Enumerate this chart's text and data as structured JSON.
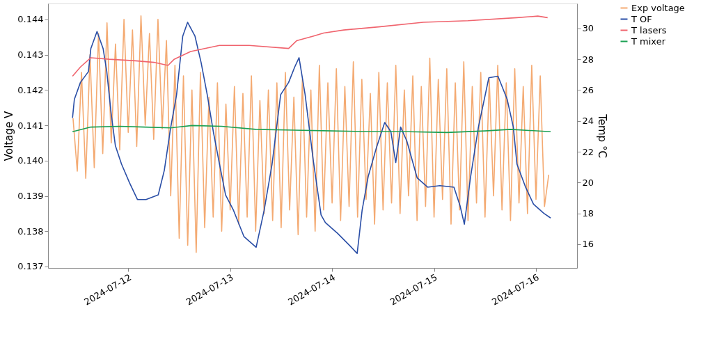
{
  "chart_data": {
    "type": "line",
    "xlabel": null,
    "ylabel": "Voltage V",
    "y2label": "Temp °C",
    "xlim": [
      "2024-07-11T05:07",
      "2024-07-16T09:40"
    ],
    "xticks": [
      "2024-07-12",
      "2024-07-13",
      "2024-07-14",
      "2024-07-15",
      "2024-07-16"
    ],
    "ylim": [
      0.13696,
      0.14445
    ],
    "yticks": [
      0.137,
      0.138,
      0.139,
      {
        "value": 0.14,
        "label": "0.140"
      },
      0.141,
      0.142,
      0.143,
      0.144
    ],
    "y2lim": [
      14.46,
      31.62
    ],
    "y2ticks": [
      16,
      18,
      20,
      22,
      24,
      26,
      28,
      30
    ],
    "grid": false,
    "legend": "top right",
    "marker": "none",
    "line_style": "solid",
    "series": [
      {
        "name": "Exp voltage",
        "color": "#f4aa72",
        "x": [
          "2024-07-11T11:00",
          "2024-07-11T12:00",
          "2024-07-11T13:00",
          "2024-07-11T14:00",
          "2024-07-11T15:00",
          "2024-07-11T16:00",
          "2024-07-11T17:00",
          "2024-07-11T18:00",
          "2024-07-11T19:00",
          "2024-07-11T20:00",
          "2024-07-11T21:00",
          "2024-07-11T22:00",
          "2024-07-11T23:00",
          "2024-07-12T00:00",
          "2024-07-12T01:00",
          "2024-07-12T02:00",
          "2024-07-12T03:00",
          "2024-07-12T04:00",
          "2024-07-12T05:00",
          "2024-07-12T06:00",
          "2024-07-12T07:00",
          "2024-07-12T08:00",
          "2024-07-12T09:00",
          "2024-07-12T10:00",
          "2024-07-12T11:00",
          "2024-07-12T12:00",
          "2024-07-12T13:00",
          "2024-07-12T14:00",
          "2024-07-12T15:00",
          "2024-07-12T16:00",
          "2024-07-12T17:00",
          "2024-07-12T18:00",
          "2024-07-12T19:00",
          "2024-07-12T20:00",
          "2024-07-12T21:00",
          "2024-07-12T22:00",
          "2024-07-12T23:00",
          "2024-07-13T00:00",
          "2024-07-13T01:00",
          "2024-07-13T02:00",
          "2024-07-13T03:00",
          "2024-07-13T04:00",
          "2024-07-13T05:00",
          "2024-07-13T06:00",
          "2024-07-13T07:00",
          "2024-07-13T08:00",
          "2024-07-13T09:00",
          "2024-07-13T10:00",
          "2024-07-13T11:00",
          "2024-07-13T12:00",
          "2024-07-13T13:00",
          "2024-07-13T14:00",
          "2024-07-13T15:00",
          "2024-07-13T16:00",
          "2024-07-13T17:00",
          "2024-07-13T18:00",
          "2024-07-13T19:00",
          "2024-07-13T20:00",
          "2024-07-13T21:00",
          "2024-07-13T22:00",
          "2024-07-13T23:00",
          "2024-07-14T00:00",
          "2024-07-14T01:00",
          "2024-07-14T02:00",
          "2024-07-14T03:00",
          "2024-07-14T04:00",
          "2024-07-14T05:00",
          "2024-07-14T06:00",
          "2024-07-14T07:00",
          "2024-07-14T08:00",
          "2024-07-14T09:00",
          "2024-07-14T10:00",
          "2024-07-14T11:00",
          "2024-07-14T12:00",
          "2024-07-14T13:00",
          "2024-07-14T14:00",
          "2024-07-14T15:00",
          "2024-07-14T16:00",
          "2024-07-14T17:00",
          "2024-07-14T18:00",
          "2024-07-14T19:00",
          "2024-07-14T20:00",
          "2024-07-14T21:00",
          "2024-07-14T22:00",
          "2024-07-14T23:00",
          "2024-07-15T00:00",
          "2024-07-15T01:00",
          "2024-07-15T02:00",
          "2024-07-15T03:00",
          "2024-07-15T04:00",
          "2024-07-15T05:00",
          "2024-07-15T06:00",
          "2024-07-15T07:00",
          "2024-07-15T08:00",
          "2024-07-15T09:00",
          "2024-07-15T10:00",
          "2024-07-15T11:00",
          "2024-07-15T12:00",
          "2024-07-15T13:00",
          "2024-07-15T14:00",
          "2024-07-15T15:00",
          "2024-07-15T16:00",
          "2024-07-15T17:00",
          "2024-07-15T18:00",
          "2024-07-15T19:00",
          "2024-07-15T20:00",
          "2024-07-15T21:00",
          "2024-07-15T22:00",
          "2024-07-15T23:00",
          "2024-07-16T00:00",
          "2024-07-16T01:00",
          "2024-07-16T02:00",
          "2024-07-16T03:00"
        ],
        "values": [
          0.1412,
          0.1397,
          0.1425,
          0.1395,
          0.143,
          0.1398,
          0.1436,
          0.1402,
          0.1439,
          0.1405,
          0.1433,
          0.1403,
          0.144,
          0.1408,
          0.1437,
          0.1404,
          0.1441,
          0.141,
          0.1436,
          0.1406,
          0.144,
          0.1409,
          0.1434,
          0.139,
          0.1427,
          0.1378,
          0.1424,
          0.1376,
          0.142,
          0.1374,
          0.1425,
          0.1381,
          0.1418,
          0.1384,
          0.1422,
          0.138,
          0.1416,
          0.1386,
          0.1421,
          0.1382,
          0.1419,
          0.1384,
          0.1424,
          0.138,
          0.1417,
          0.1385,
          0.142,
          0.1383,
          0.1422,
          0.1381,
          0.1425,
          0.1386,
          0.1418,
          0.1379,
          0.1423,
          0.1384,
          0.142,
          0.138,
          0.1427,
          0.1386,
          0.1422,
          0.1388,
          0.1426,
          0.1383,
          0.1421,
          0.1387,
          0.1428,
          0.1384,
          0.1423,
          0.1389,
          0.1419,
          0.1382,
          0.1425,
          0.1386,
          0.1422,
          0.1388,
          0.1427,
          0.1385,
          0.142,
          0.139,
          0.1424,
          0.1383,
          0.1421,
          0.1387,
          0.1429,
          0.1384,
          0.1423,
          0.1389,
          0.1426,
          0.1382,
          0.1422,
          0.1386,
          0.1428,
          0.1383,
          0.1421,
          0.1388,
          0.1425,
          0.1384,
          0.1423,
          0.139,
          0.1427,
          0.1386,
          0.1422,
          0.1383,
          0.1426,
          0.1388,
          0.1421,
          0.1385,
          0.1427,
          0.1389,
          0.1424,
          0.1387,
          0.1396
        ]
      },
      {
        "name": "T OF",
        "color": "#2a4ea6",
        "axis": "y2",
        "x": [
          "2024-07-11T10:53",
          "2024-07-11T11:19",
          "2024-07-11T12:45",
          "2024-07-11T14:38",
          "2024-07-11T15:12",
          "2024-07-11T16:39",
          "2024-07-11T18:05",
          "2024-07-11T18:57",
          "2024-07-11T19:58",
          "2024-07-11T20:58",
          "2024-07-11T22:25",
          "2024-07-12T00:17",
          "2024-07-12T02:10",
          "2024-07-12T04:11",
          "2024-07-12T07:04",
          "2024-07-12T08:30",
          "2024-07-12T09:57",
          "2024-07-12T11:23",
          "2024-07-12T12:50",
          "2024-07-12T13:59",
          "2024-07-12T15:43",
          "2024-07-12T17:09",
          "2024-07-12T18:36",
          "2024-07-12T20:02",
          "2024-07-12T21:29",
          "2024-07-12T22:55",
          "2024-07-13T00:47",
          "2024-07-13T03:14",
          "2024-07-13T06:07",
          "2024-07-13T08:00",
          "2024-07-13T09:52",
          "2024-07-13T11:53",
          "2024-07-13T13:46",
          "2024-07-13T15:12",
          "2024-07-13T16:13",
          "2024-07-13T17:39",
          "2024-07-13T19:32",
          "2024-07-13T21:24",
          "2024-07-13T22:25",
          "2024-07-14T01:18",
          "2024-07-14T04:11",
          "2024-07-14T05:54",
          "2024-07-14T07:04",
          "2024-07-14T08:30",
          "2024-07-14T10:22",
          "2024-07-14T12:23",
          "2024-07-14T13:50",
          "2024-07-14T14:59",
          "2024-07-14T16:08",
          "2024-07-14T17:35",
          "2024-07-14T20:02",
          "2024-07-14T22:29",
          "2024-07-15T01:22",
          "2024-07-15T04:41",
          "2024-07-15T06:07",
          "2024-07-15T07:08",
          "2024-07-15T08:34",
          "2024-07-15T10:27",
          "2024-07-15T12:54",
          "2024-07-15T15:03",
          "2024-07-15T17:13",
          "2024-07-15T18:40",
          "2024-07-15T19:31",
          "2024-07-15T21:33",
          "2024-07-15T23:25",
          "2024-07-16T01:52",
          "2024-07-16T03:27"
        ],
        "values": [
          24.2,
          25.4,
          26.5,
          27.2,
          28.7,
          29.8,
          28.7,
          27.2,
          24.5,
          22.4,
          21.2,
          20.0,
          18.9,
          18.9,
          19.2,
          20.8,
          23.5,
          25.7,
          29.5,
          30.4,
          29.5,
          27.8,
          25.7,
          23.3,
          21.2,
          19.2,
          18.2,
          16.5,
          15.8,
          18.2,
          21.2,
          25.7,
          26.5,
          27.5,
          28.1,
          25.7,
          21.5,
          17.9,
          17.4,
          16.7,
          15.9,
          15.4,
          18.2,
          20.4,
          22.2,
          23.9,
          23.3,
          21.3,
          23.6,
          22.7,
          20.3,
          19.7,
          19.8,
          19.7,
          18.5,
          17.3,
          20.3,
          23.6,
          26.8,
          26.9,
          25.4,
          23.6,
          21.2,
          19.7,
          18.6,
          18.0,
          17.7
        ]
      },
      {
        "name": "T lasers",
        "color": "#f0646e",
        "axis": "y2",
        "x": [
          "2024-07-11T10:53",
          "2024-07-11T12:45",
          "2024-07-11T15:12",
          "2024-07-11T19:32",
          "2024-07-12T01:44",
          "2024-07-12T06:03",
          "2024-07-12T09:22",
          "2024-07-12T10:49",
          "2024-07-12T14:42",
          "2024-07-12T21:29",
          "2024-07-13T04:27",
          "2024-07-13T13:46",
          "2024-07-13T15:38",
          "2024-07-13T19:32",
          "2024-07-13T21:59",
          "2024-07-14T02:44",
          "2024-07-14T10:57",
          "2024-07-14T21:28",
          "2024-07-15T08:00",
          "2024-07-15T19:31",
          "2024-07-16T00:26",
          "2024-07-16T02:44"
        ],
        "values": [
          26.9,
          27.5,
          28.1,
          28.0,
          27.9,
          27.8,
          27.6,
          28.0,
          28.5,
          28.9,
          28.9,
          28.7,
          29.2,
          29.5,
          29.7,
          29.9,
          30.1,
          30.4,
          30.5,
          30.7,
          30.8,
          30.7
        ]
      },
      {
        "name": "T mixer",
        "color": "#1aa053",
        "axis": "y2",
        "x": [
          "2024-07-11T10:53",
          "2024-07-11T15:12",
          "2024-07-11T22:00",
          "2024-07-12T04:00",
          "2024-07-12T10:00",
          "2024-07-12T15:00",
          "2024-07-12T22:00",
          "2024-07-13T06:00",
          "2024-07-13T15:00",
          "2024-07-14T00:00",
          "2024-07-14T09:00",
          "2024-07-14T18:00",
          "2024-07-15T03:00",
          "2024-07-15T12:00",
          "2024-07-15T18:00",
          "2024-07-16T03:27"
        ],
        "values": [
          23.3,
          23.6,
          23.65,
          23.6,
          23.55,
          23.7,
          23.65,
          23.45,
          23.4,
          23.35,
          23.3,
          23.3,
          23.25,
          23.35,
          23.45,
          23.3
        ]
      }
    ]
  }
}
